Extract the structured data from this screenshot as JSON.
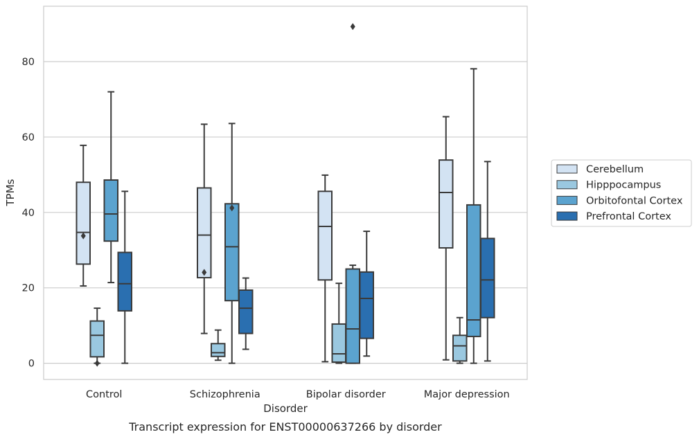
{
  "chart_data": {
    "type": "box",
    "caption": "Transcript expression for ENST00000637266 by disorder",
    "xlabel": "Disorder",
    "ylabel": "TPMs",
    "ylim": [
      -4.3,
      94.7
    ],
    "yticks": [
      0,
      20,
      40,
      60,
      80
    ],
    "grid": "horizontal",
    "legend_position": "right",
    "categories": [
      "Control",
      "Schizophrenia",
      "Bipolar disorder",
      "Major depression"
    ],
    "series": [
      {
        "name": "Cerebellum",
        "color": "#d3e3f3",
        "boxes": [
          {
            "whisker_low": 20.5,
            "q1": 26.3,
            "median": 34.7,
            "q3": 48.0,
            "whisker_high": 57.8,
            "outliers": [
              33.8
            ]
          },
          {
            "whisker_low": 7.9,
            "q1": 22.7,
            "median": 34.0,
            "q3": 46.5,
            "whisker_high": 63.4,
            "outliers": [
              24.1
            ]
          },
          {
            "whisker_low": 0.4,
            "q1": 22.1,
            "median": 36.3,
            "q3": 45.6,
            "whisker_high": 49.9,
            "outliers": []
          },
          {
            "whisker_low": 0.9,
            "q1": 30.6,
            "median": 45.3,
            "q3": 53.9,
            "whisker_high": 65.4,
            "outliers": []
          }
        ]
      },
      {
        "name": "Hipppocampus",
        "color": "#9ac8e0",
        "boxes": [
          {
            "whisker_low": 0.0,
            "q1": 1.7,
            "median": 7.4,
            "q3": 11.2,
            "whisker_high": 14.6,
            "outliers": [
              0.0
            ]
          },
          {
            "whisker_low": 0.8,
            "q1": 1.8,
            "median": 2.8,
            "q3": 5.2,
            "whisker_high": 8.8,
            "outliers": []
          },
          {
            "whisker_low": 0.0,
            "q1": 0.3,
            "median": 2.5,
            "q3": 10.4,
            "whisker_high": 21.2,
            "outliers": []
          },
          {
            "whisker_low": 0.0,
            "q1": 0.6,
            "median": 4.6,
            "q3": 7.4,
            "whisker_high": 12.1,
            "outliers": []
          }
        ]
      },
      {
        "name": "Orbitofontal Cortex",
        "color": "#5ba3cf",
        "boxes": [
          {
            "whisker_low": 21.4,
            "q1": 32.4,
            "median": 39.6,
            "q3": 48.6,
            "whisker_high": 72.0,
            "outliers": []
          },
          {
            "whisker_low": 0.0,
            "q1": 16.6,
            "median": 30.9,
            "q3": 42.3,
            "whisker_high": 63.6,
            "outliers": [
              41.2
            ]
          },
          {
            "whisker_low": 0.0,
            "q1": 0.0,
            "median": 9.1,
            "q3": 25.0,
            "whisker_high": 26.0,
            "outliers": [
              89.3
            ]
          },
          {
            "whisker_low": 0.0,
            "q1": 7.1,
            "median": 11.5,
            "q3": 42.0,
            "whisker_high": 78.1,
            "outliers": []
          }
        ]
      },
      {
        "name": "Prefrontal Cortex",
        "color": "#2a6fb0",
        "boxes": [
          {
            "whisker_low": 0.0,
            "q1": 13.9,
            "median": 21.1,
            "q3": 29.4,
            "whisker_high": 45.6,
            "outliers": []
          },
          {
            "whisker_low": 3.7,
            "q1": 7.9,
            "median": 14.6,
            "q3": 19.4,
            "whisker_high": 22.6,
            "outliers": []
          },
          {
            "whisker_low": 1.9,
            "q1": 6.6,
            "median": 17.2,
            "q3": 24.2,
            "whisker_high": 35.0,
            "outliers": []
          },
          {
            "whisker_low": 0.6,
            "q1": 12.1,
            "median": 22.1,
            "q3": 33.1,
            "whisker_high": 53.5,
            "outliers": []
          }
        ]
      }
    ]
  }
}
